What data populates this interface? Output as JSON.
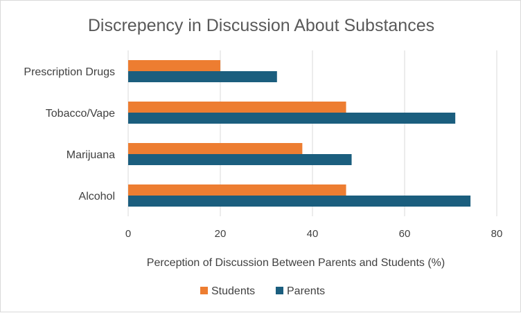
{
  "chart_data": {
    "type": "bar",
    "orientation": "horizontal",
    "title": "Discrepency in Discussion About Substances",
    "xlabel": "Perception of Discussion Between Parents and Students (%)",
    "ylabel": "",
    "categories": [
      "Prescription Drugs",
      "Tobacco/Vape",
      "Marijuana",
      "Alcohol"
    ],
    "series": [
      {
        "name": "Students",
        "color": "#ED7D31",
        "values": [
          20,
          47.3,
          37.8,
          47.3
        ]
      },
      {
        "name": "Parents",
        "color": "#1B5E7E",
        "values": [
          32.3,
          71,
          48.5,
          74.3
        ]
      }
    ],
    "xlim": [
      0,
      80
    ],
    "xticks": [
      0,
      20,
      40,
      60,
      80
    ],
    "grid": true,
    "legend_position": "bottom"
  }
}
